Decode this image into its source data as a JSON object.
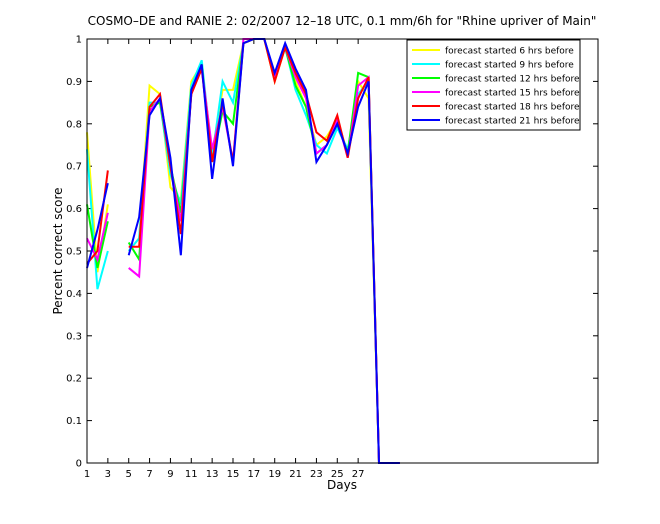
{
  "chart_data": {
    "type": "line",
    "title": "COSMO–DE and RANIE 2: 02/2007 12–18 UTC, 0.1 mm/6h for \"Rhine upriver of Main\"",
    "xlabel": "Days",
    "ylabel": "Percent correct score",
    "x": [
      1,
      2,
      3,
      4,
      5,
      6,
      7,
      8,
      9,
      10,
      11,
      12,
      13,
      14,
      15,
      16,
      17,
      18,
      19,
      20,
      21,
      22,
      23,
      24,
      25,
      26,
      27,
      28,
      29,
      30,
      31
    ],
    "xlim": [
      1,
      50
    ],
    "xticks": [
      1,
      3,
      5,
      7,
      9,
      11,
      13,
      15,
      17,
      19,
      21,
      23,
      25,
      27
    ],
    "ylim": [
      0,
      1
    ],
    "yticks": [
      0,
      0.1,
      0.2,
      0.3,
      0.4,
      0.5,
      0.6,
      0.7,
      0.8,
      0.9,
      1
    ],
    "legend": "upper right",
    "series": [
      {
        "name": "forecast started 6 hrs before",
        "color": "#ffff00",
        "values": [
          0.78,
          0.45,
          0.61,
          null,
          0.5,
          0.53,
          0.89,
          0.87,
          0.65,
          0.62,
          0.9,
          0.94,
          0.73,
          0.88,
          0.88,
          0.99,
          1,
          1,
          0.9,
          0.98,
          0.9,
          0.84,
          0.75,
          0.77,
          0.81,
          0.73,
          0.9,
          0.86,
          0,
          0,
          0
        ]
      },
      {
        "name": "forecast started 9 hrs before",
        "color": "#00ffff",
        "values": [
          0.74,
          0.41,
          0.5,
          null,
          0.5,
          0.53,
          0.85,
          0.85,
          0.68,
          0.61,
          0.89,
          0.95,
          0.72,
          0.9,
          0.85,
          0.99,
          1,
          1,
          0.91,
          0.98,
          0.88,
          0.82,
          0.75,
          0.73,
          0.79,
          0.74,
          0.87,
          0.9,
          0,
          0,
          0
        ]
      },
      {
        "name": "forecast started 12 hrs before",
        "color": "#00ff00",
        "values": [
          0.61,
          0.46,
          0.57,
          null,
          0.52,
          0.48,
          0.84,
          0.85,
          0.7,
          0.59,
          0.87,
          0.94,
          0.71,
          0.83,
          0.8,
          0.99,
          1,
          1,
          0.91,
          0.98,
          0.89,
          0.84,
          0.73,
          0.75,
          0.8,
          0.73,
          0.92,
          0.91,
          0,
          0,
          0
        ]
      },
      {
        "name": "forecast started 15 hrs before",
        "color": "#ff00ff",
        "values": [
          0.53,
          0.48,
          0.59,
          null,
          0.46,
          0.44,
          0.83,
          0.86,
          0.7,
          0.57,
          0.87,
          0.93,
          0.74,
          0.84,
          0.71,
          1,
          1,
          1,
          0.91,
          0.98,
          0.91,
          0.86,
          0.73,
          0.75,
          0.81,
          0.72,
          0.89,
          0.91,
          0,
          0,
          0
        ]
      },
      {
        "name": "forecast started 18 hrs before",
        "color": "#ff0000",
        "values": [
          0.47,
          0.5,
          0.69,
          null,
          0.51,
          0.51,
          0.84,
          0.87,
          0.7,
          0.54,
          0.87,
          0.93,
          0.71,
          0.85,
          0.71,
          0.99,
          1,
          1,
          0.9,
          0.98,
          0.92,
          0.87,
          0.78,
          0.76,
          0.82,
          0.72,
          0.86,
          0.91,
          0,
          0,
          0
        ]
      },
      {
        "name": "forecast started 21 hrs before",
        "color": "#0000ff",
        "values": [
          0.46,
          0.55,
          0.66,
          null,
          0.49,
          0.58,
          0.82,
          0.86,
          0.72,
          0.49,
          0.88,
          0.94,
          0.67,
          0.86,
          0.7,
          0.99,
          1,
          1,
          0.92,
          0.99,
          0.93,
          0.88,
          0.71,
          0.75,
          0.8,
          0.73,
          0.84,
          0.9,
          0,
          0,
          0
        ]
      }
    ]
  }
}
